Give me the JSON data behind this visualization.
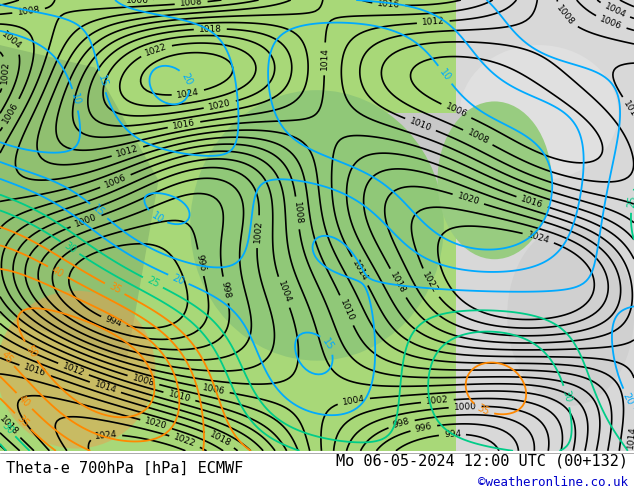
{
  "title_left": "Theta-e 700hPa [hPa] ECMWF",
  "title_right": "Mo 06-05-2024 12:00 UTC (00+132)",
  "copyright": "©weatheronline.co.uk",
  "bg_color": "#ffffff",
  "map_bg_green": "#90c060",
  "map_bg_gray": "#c8c8c8",
  "map_bg_light": "#e8e8e8",
  "contour_color_pressure": "#000000",
  "contour_color_theta_low": "#00aaff",
  "contour_color_theta_mid": "#00ddaa",
  "contour_color_theta_high": "#ff8800",
  "label_color_left": "#000000",
  "label_color_right": "#000000",
  "copyright_color": "#0000cc",
  "font_size_title": 11,
  "font_size_copyright": 9,
  "fig_width": 6.34,
  "fig_height": 4.9,
  "dpi": 100
}
